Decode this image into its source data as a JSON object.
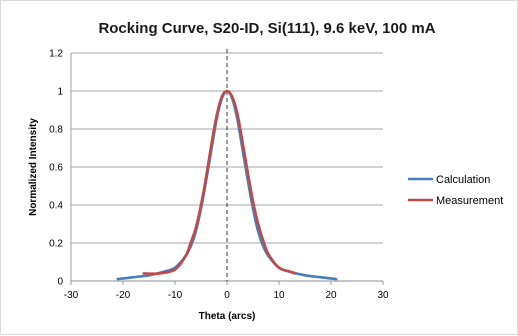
{
  "chart_data": {
    "type": "line",
    "title": "Rocking Curve, S20-ID, Si(111), 9.6 keV, 100 mA",
    "xlabel": "Theta (arcs)",
    "ylabel": "Normalized Intensity",
    "xlim": [
      -30,
      30
    ],
    "ylim": [
      0,
      1.2
    ],
    "xticks": [
      "-30",
      "-20",
      "-10",
      "0",
      "10",
      "20",
      "30"
    ],
    "yticks": [
      "0",
      "0.2",
      "0.4",
      "0.6",
      "0.8",
      "1",
      "1.2"
    ],
    "grid": "horizontal",
    "reference_line": {
      "x": 0,
      "style": "dashed"
    },
    "legend_position": "right",
    "series": [
      {
        "name": "Calculation",
        "color": "#4a7ebb",
        "x": [
          -21,
          -18,
          -15,
          -12,
          -10,
          -8,
          -7,
          -6,
          -5,
          -4,
          -3,
          -2,
          -1,
          0,
          1,
          2,
          3,
          4,
          5,
          6,
          7,
          8,
          10,
          12,
          15,
          18,
          21
        ],
        "y": [
          0.01,
          0.02,
          0.03,
          0.05,
          0.07,
          0.13,
          0.18,
          0.26,
          0.38,
          0.53,
          0.69,
          0.85,
          0.96,
          1.0,
          0.96,
          0.85,
          0.69,
          0.53,
          0.38,
          0.26,
          0.18,
          0.13,
          0.07,
          0.05,
          0.03,
          0.02,
          0.01
        ]
      },
      {
        "name": "Measurement",
        "color": "#be4b48",
        "x": [
          -16,
          -13,
          -10,
          -8,
          -7,
          -6,
          -5,
          -4,
          -3,
          -2,
          -1,
          0,
          1,
          2,
          3,
          4,
          5,
          6,
          7,
          8,
          10,
          12,
          13
        ],
        "y": [
          0.04,
          0.04,
          0.06,
          0.13,
          0.2,
          0.28,
          0.4,
          0.55,
          0.72,
          0.87,
          0.97,
          1.0,
          0.97,
          0.88,
          0.73,
          0.57,
          0.42,
          0.3,
          0.21,
          0.14,
          0.07,
          0.05,
          0.04
        ]
      }
    ]
  }
}
